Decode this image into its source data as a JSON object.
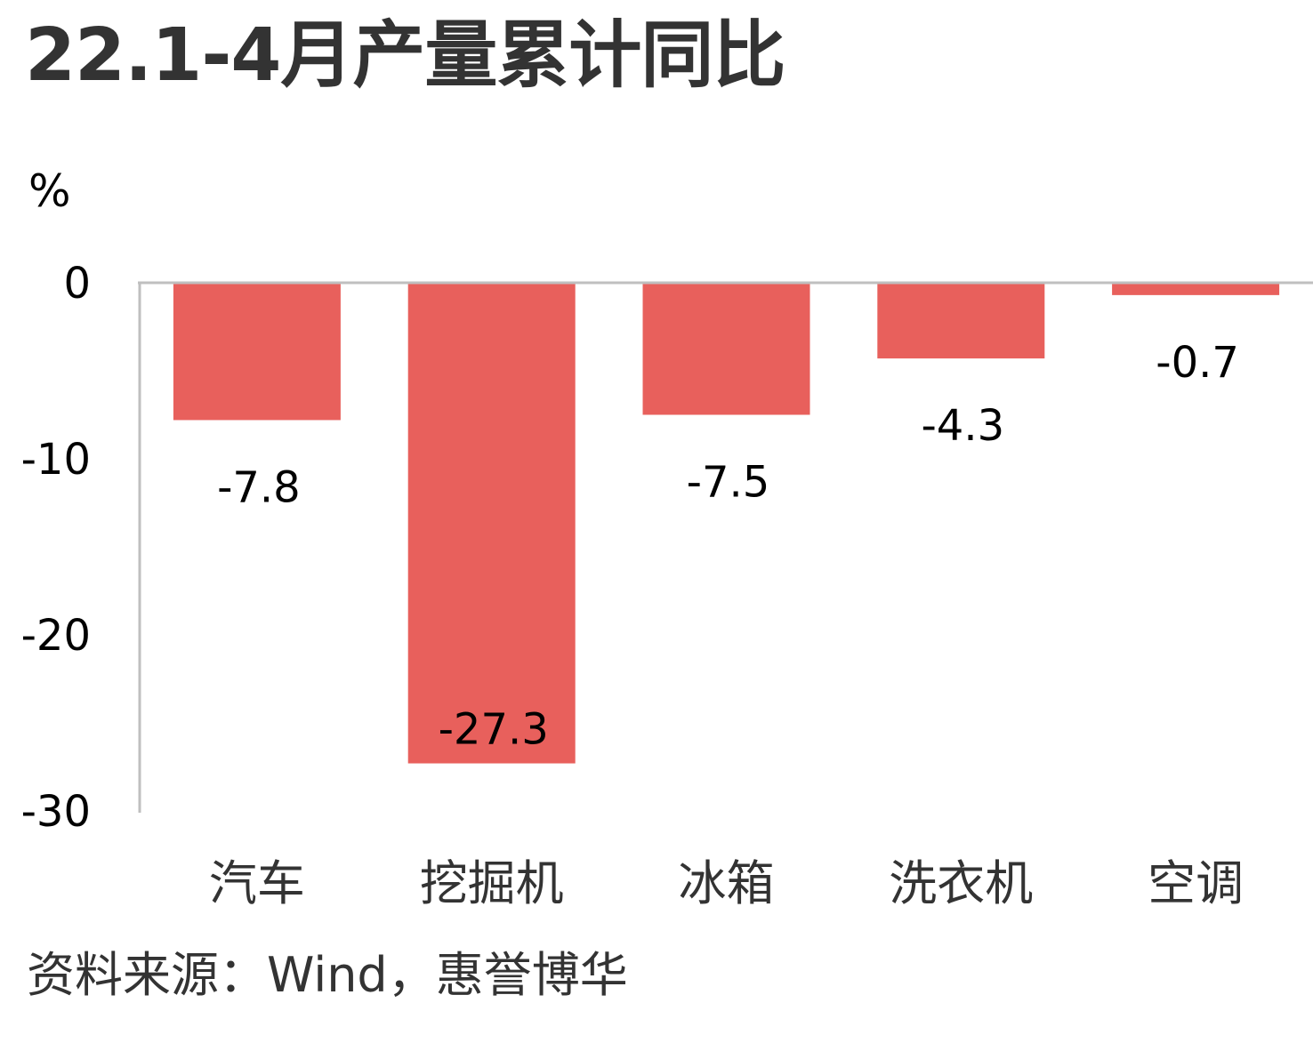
{
  "title": "22.1-4月产量累计同比",
  "unit": "%",
  "source": "资料来源：Wind，惠誉博华",
  "chart_data": {
    "type": "bar",
    "title": "22.1-4月产量累计同比",
    "ylabel": "%",
    "categories": [
      "汽车",
      "挖掘机",
      "冰箱",
      "洗衣机",
      "空调"
    ],
    "values": [
      -7.8,
      -27.3,
      -7.5,
      -4.3,
      -0.7
    ],
    "value_labels": [
      "-7.8",
      "-27.3",
      "-7.5",
      "-4.3",
      "-0.7"
    ],
    "y_ticks": [
      0,
      -10,
      -20,
      -30
    ],
    "y_tick_labels": [
      "0",
      "-10",
      "-20",
      "-30"
    ],
    "ylim": [
      -30,
      0
    ],
    "grid": false,
    "colors": {
      "bar": "#E8605C",
      "axis": "#BFBFBF"
    }
  }
}
